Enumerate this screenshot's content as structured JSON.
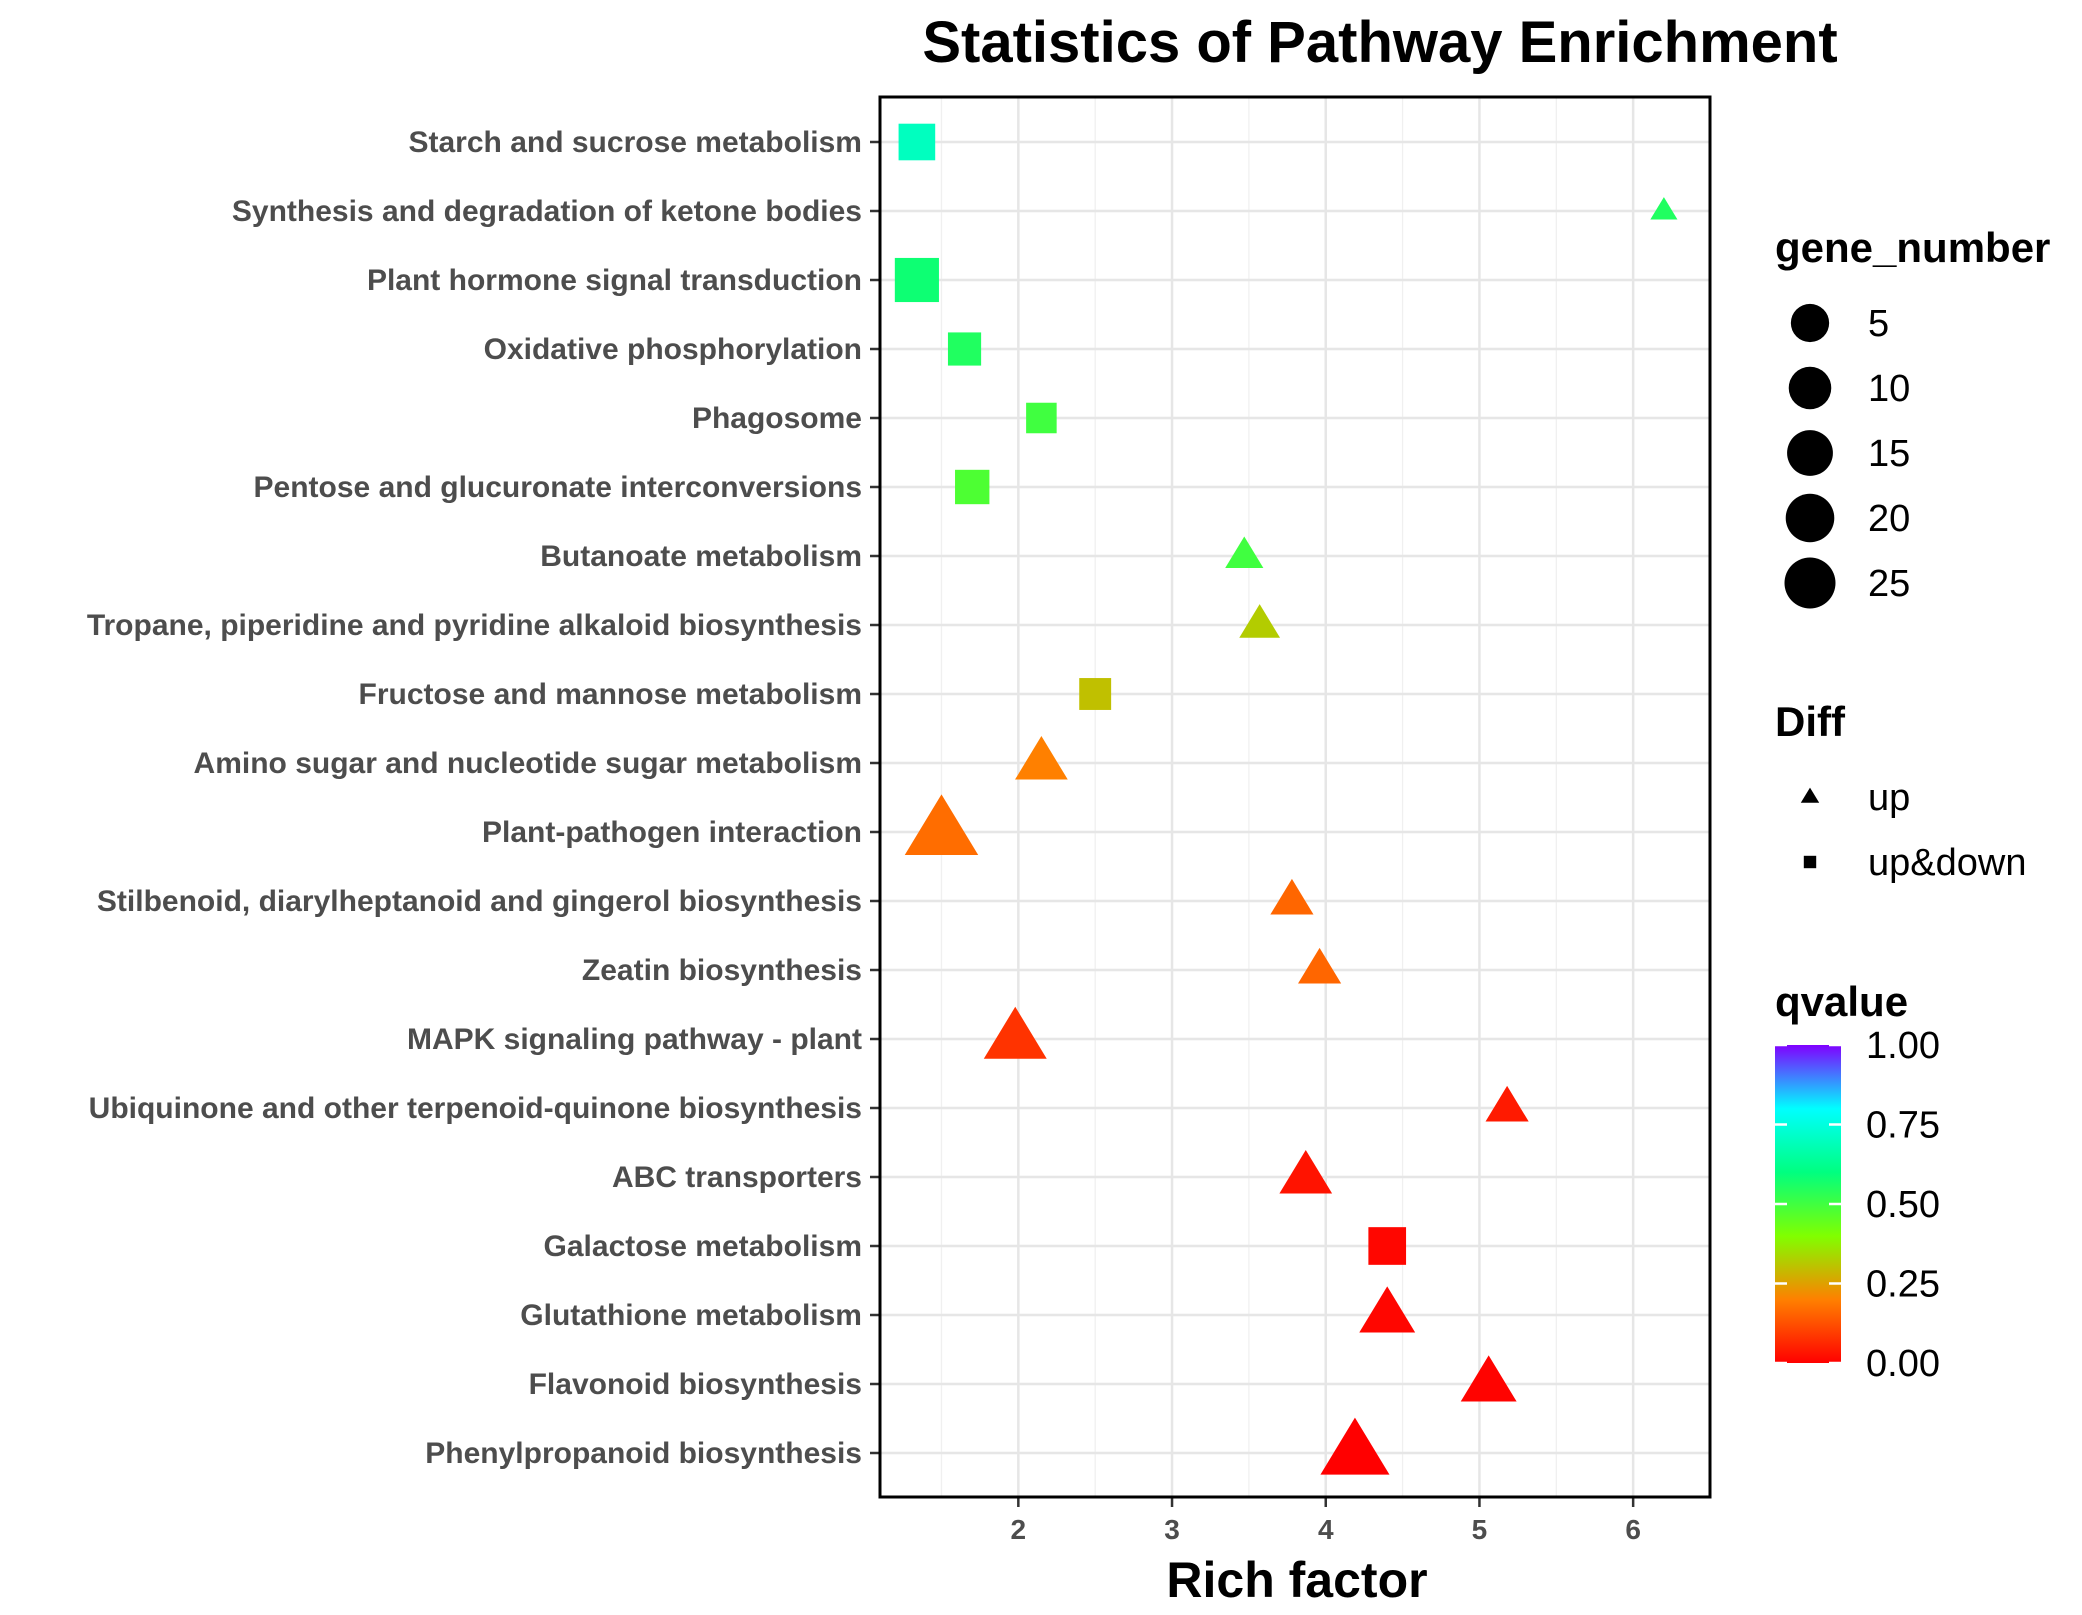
{
  "chart_data": {
    "type": "scatter",
    "title": "Statistics of Pathway Enrichment",
    "xlabel": "Rich factor",
    "ylabel": "",
    "xlim": [
      1.1,
      6.5
    ],
    "x_ticks": [
      2,
      3,
      4,
      5,
      6
    ],
    "grid": true,
    "categories": [
      "Starch and sucrose metabolism",
      "Synthesis and degradation of ketone bodies",
      "Plant hormone signal transduction",
      "Oxidative phosphorylation",
      "Phagosome",
      "Pentose and glucuronate interconversions",
      "Butanoate metabolism",
      "Tropane, piperidine and pyridine alkaloid biosynthesis",
      "Fructose and mannose metabolism",
      "Amino sugar and nucleotide sugar metabolism",
      "Plant-pathogen interaction",
      "Stilbenoid, diarylheptanoid and gingerol biosynthesis",
      "Zeatin biosynthesis",
      "MAPK signaling pathway - plant",
      "Ubiquinone and other terpenoid-quinone biosynthesis",
      "ABC transporters",
      "Galactose metabolism",
      "Glutathione metabolism",
      "Flavonoid biosynthesis",
      "Phenylpropanoid biosynthesis"
    ],
    "points": [
      {
        "pathway": "Starch and sucrose metabolism",
        "rich_factor": 1.34,
        "gene_number": 12,
        "diff": "up&down",
        "qvalue": 0.7
      },
      {
        "pathway": "Synthesis and degradation of ketone bodies",
        "rich_factor": 6.2,
        "gene_number": 1,
        "diff": "up",
        "qvalue": 0.55
      },
      {
        "pathway": "Plant hormone signal transduction",
        "rich_factor": 1.34,
        "gene_number": 20,
        "diff": "up&down",
        "qvalue": 0.58
      },
      {
        "pathway": "Oxidative phosphorylation",
        "rich_factor": 1.65,
        "gene_number": 9,
        "diff": "up&down",
        "qvalue": 0.55
      },
      {
        "pathway": "Phagosome",
        "rich_factor": 2.15,
        "gene_number": 7,
        "diff": "up&down",
        "qvalue": 0.5
      },
      {
        "pathway": "Pentose and glucuronate interconversions",
        "rich_factor": 1.7,
        "gene_number": 10,
        "diff": "up&down",
        "qvalue": 0.48
      },
      {
        "pathway": "Butanoate metabolism",
        "rich_factor": 3.47,
        "gene_number": 4,
        "diff": "up",
        "qvalue": 0.5
      },
      {
        "pathway": "Tropane, piperidine and pyridine alkaloid biosynthesis",
        "rich_factor": 3.57,
        "gene_number": 5,
        "diff": "up",
        "qvalue": 0.32
      },
      {
        "pathway": "Fructose and mannose metabolism",
        "rich_factor": 2.5,
        "gene_number": 8,
        "diff": "up&down",
        "qvalue": 0.3
      },
      {
        "pathway": "Amino sugar and nucleotide sugar metabolism",
        "rich_factor": 2.15,
        "gene_number": 11,
        "diff": "up",
        "qvalue": 0.2
      },
      {
        "pathway": "Plant-pathogen interaction",
        "rich_factor": 1.5,
        "gene_number": 27,
        "diff": "up",
        "qvalue": 0.17
      },
      {
        "pathway": "Stilbenoid, diarylheptanoid and gingerol biosynthesis",
        "rich_factor": 3.78,
        "gene_number": 6,
        "diff": "up",
        "qvalue": 0.16
      },
      {
        "pathway": "Zeatin biosynthesis",
        "rich_factor": 3.96,
        "gene_number": 6,
        "diff": "up",
        "qvalue": 0.16
      },
      {
        "pathway": "MAPK signaling pathway - plant",
        "rich_factor": 1.98,
        "gene_number": 18,
        "diff": "up",
        "qvalue": 0.08
      },
      {
        "pathway": "Ubiquinone and other terpenoid-quinone biosynthesis",
        "rich_factor": 5.18,
        "gene_number": 6,
        "diff": "up",
        "qvalue": 0.04
      },
      {
        "pathway": "ABC transporters",
        "rich_factor": 3.87,
        "gene_number": 11,
        "diff": "up",
        "qvalue": 0.03
      },
      {
        "pathway": "Galactose metabolism",
        "rich_factor": 4.4,
        "gene_number": 13,
        "diff": "up&down",
        "qvalue": 0.01
      },
      {
        "pathway": "Glutathione metabolism",
        "rich_factor": 4.4,
        "gene_number": 13,
        "diff": "up",
        "qvalue": 0.01
      },
      {
        "pathway": "Flavonoid biosynthesis",
        "rich_factor": 5.06,
        "gene_number": 13,
        "diff": "up",
        "qvalue": 0.005
      },
      {
        "pathway": "Phenylpropanoid biosynthesis",
        "rich_factor": 4.19,
        "gene_number": 23,
        "diff": "up",
        "qvalue": 0.0
      }
    ],
    "legend": {
      "gene_number": {
        "title": "gene_number",
        "values": [
          5,
          10,
          15,
          20,
          25
        ]
      },
      "diff": {
        "title": "Diff",
        "items": [
          "up",
          "up&down"
        ]
      },
      "qvalue": {
        "title": "qvalue",
        "ticks": [
          "1.00",
          "0.75",
          "0.50",
          "0.25",
          "0.00"
        ],
        "tick_values": [
          1.0,
          0.75,
          0.5,
          0.25,
          0.0
        ],
        "colors": [
          "#ff0000",
          "#ff8000",
          "#80ff00",
          "#00ff80",
          "#00ffff",
          "#8000ff"
        ]
      },
      "placement": "right"
    },
    "marker_color": "#000000"
  }
}
